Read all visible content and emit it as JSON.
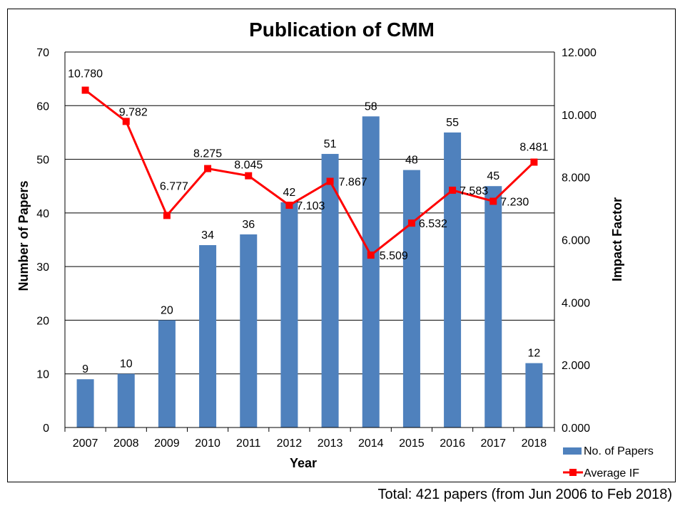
{
  "chart_data": {
    "type": "bar+line",
    "title": "Publication of CMM",
    "xlabel": "Year",
    "ylabel": "Number of Papers",
    "y2label": "Impact Factor",
    "categories": [
      "2007",
      "2008",
      "2009",
      "2010",
      "2011",
      "2012",
      "2013",
      "2014",
      "2015",
      "2016",
      "2017",
      "2018"
    ],
    "ylim": [
      0,
      70
    ],
    "yticks": [
      "0",
      "10",
      "20",
      "30",
      "40",
      "50",
      "60",
      "70"
    ],
    "y2lim": [
      0,
      12
    ],
    "y2ticks": [
      "0.000",
      "2.000",
      "4.000",
      "6.000",
      "8.000",
      "10.000",
      "12.000"
    ],
    "grid": true,
    "legend_position": "bottom-right",
    "series": [
      {
        "name": "No. of Papers",
        "type": "bar",
        "axis": "left",
        "color": "#4F81BD",
        "values": [
          9,
          10,
          20,
          34,
          36,
          42,
          51,
          58,
          48,
          55,
          45,
          12
        ],
        "labels": [
          "9",
          "10",
          "20",
          "34",
          "36",
          "42",
          "51",
          "58",
          "48",
          "55",
          "45",
          "12"
        ]
      },
      {
        "name": "Average IF",
        "type": "line",
        "axis": "right",
        "color": "#FF0000",
        "values": [
          10.78,
          9.782,
          6.777,
          8.275,
          8.045,
          7.103,
          7.867,
          5.509,
          6.532,
          7.583,
          7.23,
          8.481
        ],
        "labels": [
          "10.780",
          "9.782",
          "6.777",
          "8.275",
          "8.045",
          "7.103",
          "7.867",
          "5.509",
          "6.532",
          "7.583",
          "7.230",
          "8.481"
        ]
      }
    ]
  },
  "footnote": "Total: 421 papers (from Jun 2006 to Feb 2018)"
}
